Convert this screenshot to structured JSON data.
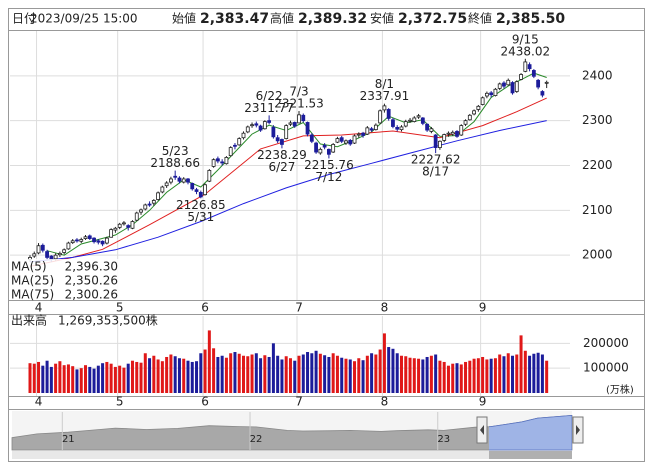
{
  "header": {
    "fields": [
      {
        "label": "日付",
        "value": "2023/09/25 15:00",
        "color": "#222"
      },
      {
        "label": "始値",
        "value": "2,383.47",
        "color": "#222"
      },
      {
        "label": "高値",
        "value": "2,389.32",
        "color": "#e01010"
      },
      {
        "label": "安値",
        "value": "2,372.75",
        "color": "#108010"
      },
      {
        "label": "終値",
        "value": "2,385.50",
        "color": "#222"
      }
    ]
  },
  "chart_data": {
    "type": "candlestick",
    "up_color": "#ffffff",
    "down_color": "#1c1c9a",
    "outline_color": "#222222",
    "ylim": [
      1900,
      2500
    ],
    "yticks": [
      2000,
      2100,
      2200,
      2300,
      2400
    ],
    "grid": true,
    "xticks": [
      {
        "value": 2,
        "label": "4"
      },
      {
        "value": 21,
        "label": "5"
      },
      {
        "value": 41,
        "label": "6"
      },
      {
        "value": 63,
        "label": "7"
      },
      {
        "value": 83,
        "label": "8"
      },
      {
        "value": 106,
        "label": "9"
      }
    ],
    "candles": [
      [
        1990,
        2000,
        1985,
        1995
      ],
      [
        1998,
        2008,
        1994,
        2003
      ],
      [
        2005,
        2027,
        2002,
        2021
      ],
      [
        2022,
        2026,
        2006,
        2011
      ],
      [
        2008,
        2012,
        1990,
        1995
      ],
      [
        1998,
        2000,
        1985,
        1990
      ],
      [
        1992,
        2004,
        1988,
        2000
      ],
      [
        2001,
        2008,
        1996,
        2004
      ],
      [
        2006,
        2015,
        2002,
        2012
      ],
      [
        2014,
        2030,
        2012,
        2027
      ],
      [
        2028,
        2036,
        2025,
        2032
      ],
      [
        2034,
        2038,
        2028,
        2033
      ],
      [
        2031,
        2039,
        2027,
        2035
      ],
      [
        2037,
        2045,
        2034,
        2041
      ],
      [
        2043,
        2046,
        2034,
        2037
      ],
      [
        2038,
        2040,
        2026,
        2030
      ],
      [
        2032,
        2036,
        2024,
        2029
      ],
      [
        2031,
        2033,
        2020,
        2025
      ],
      [
        2027,
        2041,
        2024,
        2038
      ],
      [
        2040,
        2060,
        2039,
        2057
      ],
      [
        2056,
        2063,
        2050,
        2060
      ],
      [
        2062,
        2072,
        2058,
        2069
      ],
      [
        2070,
        2076,
        2066,
        2072
      ],
      [
        2066,
        2069,
        2055,
        2062
      ],
      [
        2060,
        2078,
        2058,
        2075
      ],
      [
        2078,
        2097,
        2076,
        2094
      ],
      [
        2096,
        2104,
        2090,
        2101
      ],
      [
        2103,
        2115,
        2100,
        2112
      ],
      [
        2114,
        2120,
        2108,
        2113
      ],
      [
        2116,
        2125,
        2110,
        2122
      ],
      [
        2124,
        2142,
        2122,
        2139
      ],
      [
        2141,
        2155,
        2138,
        2152
      ],
      [
        2155,
        2165,
        2150,
        2161
      ],
      [
        2163,
        2175,
        2158,
        2170
      ],
      [
        2176,
        2188.66,
        2168,
        2174
      ],
      [
        2172,
        2176,
        2160,
        2165
      ],
      [
        2163,
        2174,
        2160,
        2170
      ],
      [
        2170,
        2172,
        2158,
        2163
      ],
      [
        2160,
        2162,
        2144,
        2148
      ],
      [
        2146,
        2150,
        2136,
        2142
      ],
      [
        2140,
        2144,
        2126.85,
        2130
      ],
      [
        2135,
        2160,
        2133,
        2157
      ],
      [
        2165,
        2192,
        2163,
        2189
      ],
      [
        2198,
        2216,
        2195,
        2213
      ],
      [
        2215,
        2220,
        2205,
        2210
      ],
      [
        2208,
        2214,
        2200,
        2206
      ],
      [
        2204,
        2221,
        2202,
        2218
      ],
      [
        2222,
        2243,
        2220,
        2240
      ],
      [
        2245,
        2250,
        2236,
        2243
      ],
      [
        2246,
        2263,
        2244,
        2260
      ],
      [
        2262,
        2276,
        2258,
        2272
      ],
      [
        2275,
        2289,
        2272,
        2286
      ],
      [
        2290,
        2296,
        2284,
        2291
      ],
      [
        2293,
        2298,
        2285,
        2290
      ],
      [
        2288,
        2291,
        2275,
        2279
      ],
      [
        2282,
        2301,
        2280,
        2298
      ],
      [
        2300,
        2311.77,
        2292,
        2296
      ],
      [
        2285,
        2290,
        2260,
        2264
      ],
      [
        2262,
        2268,
        2250,
        2255
      ],
      [
        2258,
        2260,
        2238.29,
        2247
      ],
      [
        2260,
        2292,
        2258,
        2289
      ],
      [
        2292,
        2300,
        2288,
        2295
      ],
      [
        2296,
        2298,
        2284,
        2288
      ],
      [
        2295,
        2321.53,
        2294,
        2313
      ],
      [
        2312,
        2316,
        2296,
        2300
      ],
      [
        2296,
        2298,
        2265,
        2270
      ],
      [
        2268,
        2272,
        2250,
        2254
      ],
      [
        2250,
        2253,
        2226,
        2230
      ],
      [
        2228,
        2240,
        2224,
        2236
      ],
      [
        2245,
        2250,
        2236,
        2241
      ],
      [
        2236,
        2238,
        2215.76,
        2225
      ],
      [
        2230,
        2250,
        2228,
        2247
      ],
      [
        2252,
        2264,
        2250,
        2260
      ],
      [
        2262,
        2266,
        2250,
        2254
      ],
      [
        2250,
        2258,
        2246,
        2255
      ],
      [
        2256,
        2259,
        2244,
        2248
      ],
      [
        2250,
        2269,
        2248,
        2266
      ],
      [
        2268,
        2274,
        2262,
        2270
      ],
      [
        2272,
        2275,
        2262,
        2267
      ],
      [
        2270,
        2288,
        2268,
        2284
      ],
      [
        2282,
        2286,
        2275,
        2279
      ],
      [
        2280,
        2294,
        2278,
        2290
      ],
      [
        2295,
        2325,
        2293,
        2322
      ],
      [
        2324,
        2337.91,
        2318,
        2333
      ],
      [
        2325,
        2328,
        2300,
        2305
      ],
      [
        2302,
        2306,
        2283,
        2287
      ],
      [
        2285,
        2290,
        2276,
        2281
      ],
      [
        2280,
        2290,
        2276,
        2286
      ],
      [
        2288,
        2302,
        2285,
        2298
      ],
      [
        2300,
        2306,
        2295,
        2301
      ],
      [
        2298,
        2310,
        2296,
        2306
      ],
      [
        2308,
        2315,
        2304,
        2311
      ],
      [
        2306,
        2308,
        2290,
        2294
      ],
      [
        2292,
        2294,
        2275,
        2279
      ],
      [
        2276,
        2286,
        2272,
        2282
      ],
      [
        2268,
        2270,
        2227.62,
        2240
      ],
      [
        2240,
        2256,
        2235,
        2254
      ],
      [
        2256,
        2271,
        2252,
        2269
      ],
      [
        2270,
        2276,
        2264,
        2272
      ],
      [
        2270,
        2278,
        2266,
        2274
      ],
      [
        2276,
        2279,
        2262,
        2265
      ],
      [
        2268,
        2292,
        2266,
        2289
      ],
      [
        2292,
        2303,
        2288,
        2300
      ],
      [
        2302,
        2315,
        2300,
        2312
      ],
      [
        2315,
        2325,
        2312,
        2322
      ],
      [
        2325,
        2335,
        2320,
        2332
      ],
      [
        2336,
        2354,
        2334,
        2351
      ],
      [
        2355,
        2365,
        2350,
        2361
      ],
      [
        2362,
        2366,
        2352,
        2358
      ],
      [
        2356,
        2373,
        2354,
        2370
      ],
      [
        2372,
        2385,
        2368,
        2382
      ],
      [
        2384,
        2388,
        2372,
        2377
      ],
      [
        2380,
        2394,
        2378,
        2390
      ],
      [
        2385,
        2388,
        2358,
        2362
      ],
      [
        2365,
        2390,
        2362,
        2387
      ],
      [
        2392,
        2406,
        2390,
        2403
      ],
      [
        2410,
        2438.02,
        2408,
        2431
      ],
      [
        2425,
        2430,
        2410,
        2416
      ],
      [
        2412,
        2415,
        2395,
        2399
      ],
      [
        2390,
        2393,
        2370,
        2375
      ],
      [
        2365,
        2368,
        2352,
        2357
      ],
      [
        2383.47,
        2389.32,
        2372.75,
        2385.5
      ]
    ],
    "annotations": [
      {
        "x": 34,
        "date": "5/23",
        "value": 2188.66,
        "position": "above"
      },
      {
        "x": 40,
        "date": "5/31",
        "value": 2126.85,
        "position": "below"
      },
      {
        "x": 56,
        "date": "6/22",
        "value": 2311.77,
        "position": "above"
      },
      {
        "x": 59,
        "date": "6/27",
        "value": 2238.29,
        "position": "below"
      },
      {
        "x": 63,
        "date": "7/3",
        "value": 2321.53,
        "position": "above"
      },
      {
        "x": 70,
        "date": "7/12",
        "value": 2215.76,
        "position": "below"
      },
      {
        "x": 83,
        "date": "8/1",
        "value": 2337.91,
        "position": "above"
      },
      {
        "x": 95,
        "date": "8/17",
        "value": 2227.62,
        "position": "below"
      },
      {
        "x": 116,
        "date": "9/15",
        "value": 2438.02,
        "position": "above"
      }
    ],
    "series": [
      {
        "name": "MA(5)",
        "color": "#2a8a2a",
        "latest_label": "2,396.30",
        "x": [
          4,
          8,
          12,
          16,
          20,
          24,
          28,
          32,
          36,
          40,
          44,
          48,
          52,
          56,
          60,
          64,
          68,
          72,
          76,
          80,
          84,
          88,
          92,
          96,
          100,
          104,
          108,
          112,
          116,
          118,
          121
        ],
        "values": [
          2010,
          2000,
          2025,
          2035,
          2045,
          2068,
          2100,
          2140,
          2168,
          2152,
          2190,
          2230,
          2270,
          2290,
          2278,
          2296,
          2248,
          2242,
          2257,
          2275,
          2310,
          2295,
          2302,
          2265,
          2267,
          2298,
          2352,
          2377,
          2396,
          2406,
          2396.3
        ]
      },
      {
        "name": "MA(25)",
        "color": "#e02020",
        "latest_label": "2,350.26",
        "x": [
          0,
          10,
          17,
          28,
          41,
          54,
          64,
          73,
          85,
          96,
          106,
          114,
          121
        ],
        "values": [
          1975,
          1995,
          2013,
          2068,
          2136,
          2237,
          2266,
          2268,
          2277,
          2262,
          2289,
          2320,
          2350.26
        ]
      },
      {
        "name": "MA(75)",
        "color": "#2020e0",
        "latest_label": "2,300.26",
        "x": [
          0,
          10,
          20,
          30,
          40,
          50,
          60,
          70,
          80,
          90,
          100,
          110,
          121
        ],
        "values": [
          1985,
          1995,
          2012,
          2040,
          2075,
          2115,
          2150,
          2180,
          2205,
          2230,
          2255,
          2278,
          2300.26
        ]
      }
    ],
    "volume": {
      "title": "出来高",
      "total": "1,269,353,500株",
      "unit": "(万株)",
      "up_color": "#e01818",
      "down_color": "#1c1c9a",
      "ylim": [
        0,
        310000
      ],
      "yticks": [
        100000,
        200000
      ],
      "values": [
        120000,
        118000,
        125000,
        110000,
        130000,
        105000,
        118000,
        128000,
        112000,
        115000,
        108000,
        95000,
        100000,
        112000,
        105000,
        98000,
        110000,
        120000,
        125000,
        118000,
        105000,
        110000,
        102000,
        118000,
        130000,
        125000,
        122000,
        160000,
        140000,
        150000,
        135000,
        128000,
        145000,
        155000,
        148000,
        140000,
        138000,
        130000,
        125000,
        128000,
        160000,
        175000,
        252000,
        180000,
        145000,
        150000,
        142000,
        160000,
        165000,
        158000,
        150000,
        148000,
        155000,
        160000,
        140000,
        152000,
        145000,
        200000,
        150000,
        135000,
        148000,
        140000,
        130000,
        150000,
        155000,
        165000,
        160000,
        170000,
        158000,
        152000,
        145000,
        160000,
        150000,
        142000,
        138000,
        135000,
        128000,
        140000,
        132000,
        150000,
        160000,
        155000,
        175000,
        240000,
        185000,
        178000,
        160000,
        150000,
        148000,
        142000,
        140000,
        138000,
        135000,
        145000,
        150000,
        155000,
        130000,
        125000,
        110000,
        118000,
        120000,
        115000,
        125000,
        130000,
        138000,
        140000,
        145000,
        135000,
        138000,
        140000,
        155000,
        148000,
        160000,
        150000,
        155000,
        232000,
        170000,
        150000,
        158000,
        162000,
        155000,
        130000
      ]
    },
    "navigator": {
      "type": "area",
      "color": "#a8a8a8",
      "highlight_color": "#9fb4e6",
      "xlim": [
        -3.6,
        32.2
      ],
      "ylim": [
        1200,
        2500
      ],
      "xticks": [
        {
          "value": 0,
          "label": "21"
        },
        {
          "value": 12,
          "label": "22"
        },
        {
          "value": 24,
          "label": "23"
        }
      ],
      "x": [
        -3.6,
        -2,
        0,
        2,
        3,
        5,
        7,
        9,
        11,
        12,
        14,
        15,
        17,
        18,
        20,
        21,
        23,
        24,
        26,
        27,
        29,
        30,
        32.2
      ],
      "values": [
        1625,
        1750,
        1810,
        1900,
        1950,
        1900,
        1940,
        2030,
        2000,
        1990,
        1870,
        1850,
        1860,
        1870,
        1835,
        1860,
        1890,
        1870,
        1980,
        2000,
        2160,
        2290,
        2385
      ]
    }
  }
}
